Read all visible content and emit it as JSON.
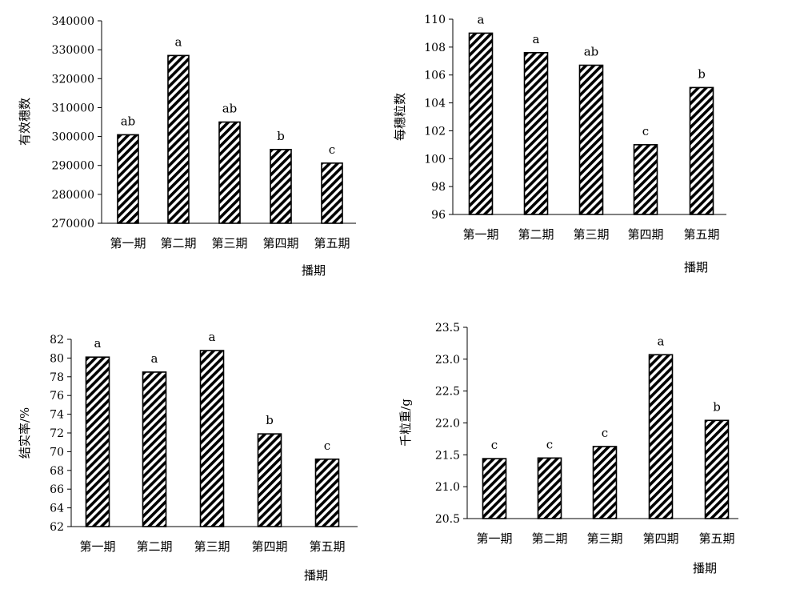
{
  "chart_data": [
    {
      "type": "bar",
      "categories": [
        "第一期",
        "第二期",
        "第三期",
        "第四期",
        "第五期"
      ],
      "values": [
        300600,
        328000,
        305000,
        295500,
        290800
      ],
      "significance": [
        "ab",
        "a",
        "ab",
        "b",
        "c"
      ],
      "ylabel": "有效穗数",
      "xlabel": "播期",
      "ylim": [
        270000,
        340000
      ],
      "yticks": [
        "270000",
        "280000",
        "290000",
        "300000",
        "310000",
        "320000",
        "330000",
        "340000"
      ]
    },
    {
      "type": "bar",
      "categories": [
        "第一期",
        "第二期",
        "第三期",
        "第四期",
        "第五期"
      ],
      "values": [
        109.0,
        107.6,
        106.7,
        101.0,
        105.1
      ],
      "significance": [
        "a",
        "a",
        "ab",
        "c",
        "b"
      ],
      "ylabel": "每穗粒数",
      "xlabel": "播期",
      "ylim": [
        96,
        110
      ],
      "yticks": [
        "96",
        "98",
        "100",
        "102",
        "104",
        "106",
        "108",
        "110"
      ]
    },
    {
      "type": "bar",
      "categories": [
        "第一期",
        "第二期",
        "第三期",
        "第四期",
        "第五期"
      ],
      "values": [
        80.1,
        78.5,
        80.8,
        71.9,
        69.2
      ],
      "significance": [
        "a",
        "a",
        "a",
        "b",
        "c"
      ],
      "ylabel": "结实率/%",
      "xlabel": "播期",
      "ylim": [
        62,
        82
      ],
      "yticks": [
        "62",
        "64",
        "66",
        "68",
        "70",
        "72",
        "74",
        "76",
        "78",
        "80",
        "82"
      ]
    },
    {
      "type": "bar",
      "categories": [
        "第一期",
        "第二期",
        "第三期",
        "第四期",
        "第五期"
      ],
      "values": [
        21.44,
        21.45,
        21.63,
        23.07,
        22.04
      ],
      "significance": [
        "c",
        "c",
        "c",
        "a",
        "b"
      ],
      "ylabel": "千粒重/g",
      "xlabel": "播期",
      "ylim": [
        20.5,
        23.5
      ],
      "yticks": [
        "20.5",
        "21.0",
        "21.5",
        "22.0",
        "22.5",
        "23.0",
        "23.5"
      ]
    }
  ]
}
